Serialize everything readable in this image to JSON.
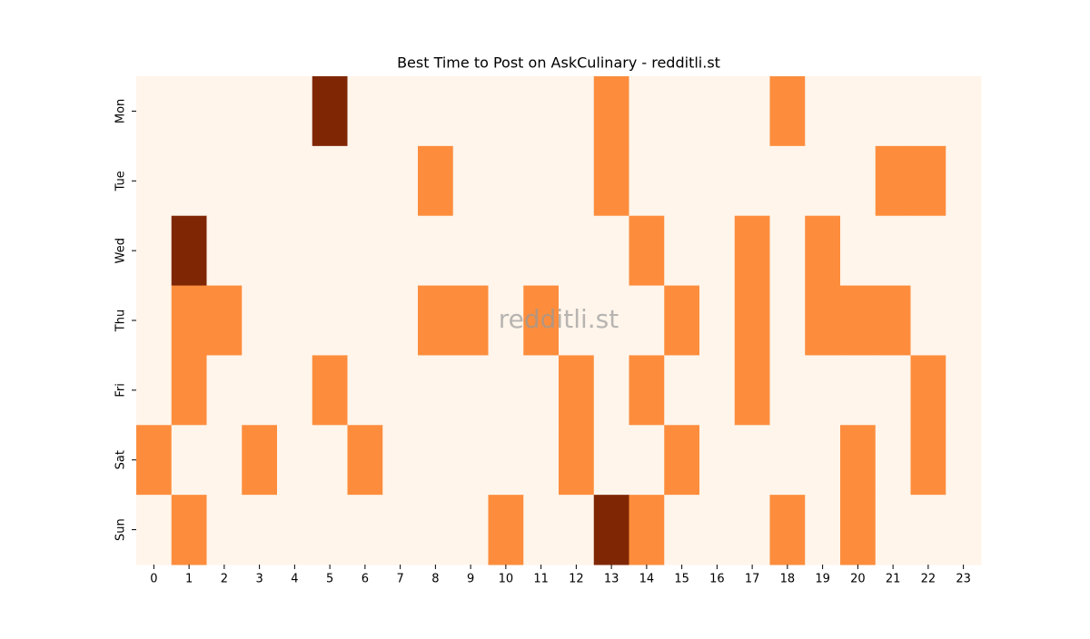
{
  "chart_data": {
    "type": "heatmap",
    "title": "Best Time to Post on AskCulinary - redditli.st",
    "watermark": "redditli.st",
    "x": [
      "0",
      "1",
      "2",
      "3",
      "4",
      "5",
      "6",
      "7",
      "8",
      "9",
      "10",
      "11",
      "12",
      "13",
      "14",
      "15",
      "16",
      "17",
      "18",
      "19",
      "20",
      "21",
      "22",
      "23"
    ],
    "y": [
      "Mon",
      "Tue",
      "Wed",
      "Thu",
      "Fri",
      "Sat",
      "Sun"
    ],
    "colors": [
      "#fff5eb",
      "#fd8d3c",
      "#7f2704"
    ],
    "values": [
      [
        0,
        0,
        0,
        0,
        0,
        2,
        0,
        0,
        0,
        0,
        0,
        0,
        0,
        1,
        0,
        0,
        0,
        0,
        1,
        0,
        0,
        0,
        0,
        0
      ],
      [
        0,
        0,
        0,
        0,
        0,
        0,
        0,
        0,
        1,
        0,
        0,
        0,
        0,
        1,
        0,
        0,
        0,
        0,
        0,
        0,
        0,
        1,
        1,
        0
      ],
      [
        0,
        2,
        0,
        0,
        0,
        0,
        0,
        0,
        0,
        0,
        0,
        0,
        0,
        0,
        1,
        0,
        0,
        1,
        0,
        1,
        0,
        0,
        0,
        0
      ],
      [
        0,
        1,
        1,
        0,
        0,
        0,
        0,
        0,
        1,
        1,
        0,
        1,
        0,
        0,
        0,
        1,
        0,
        1,
        0,
        1,
        1,
        1,
        0,
        0
      ],
      [
        0,
        1,
        0,
        0,
        0,
        1,
        0,
        0,
        0,
        0,
        0,
        0,
        1,
        0,
        1,
        0,
        0,
        1,
        0,
        0,
        0,
        0,
        1,
        0
      ],
      [
        1,
        0,
        0,
        1,
        0,
        0,
        1,
        0,
        0,
        0,
        0,
        0,
        1,
        0,
        0,
        1,
        0,
        0,
        0,
        0,
        1,
        0,
        1,
        0
      ],
      [
        0,
        1,
        0,
        0,
        0,
        0,
        0,
        0,
        0,
        0,
        1,
        0,
        0,
        2,
        1,
        0,
        0,
        0,
        1,
        0,
        1,
        0,
        0,
        0
      ]
    ]
  }
}
